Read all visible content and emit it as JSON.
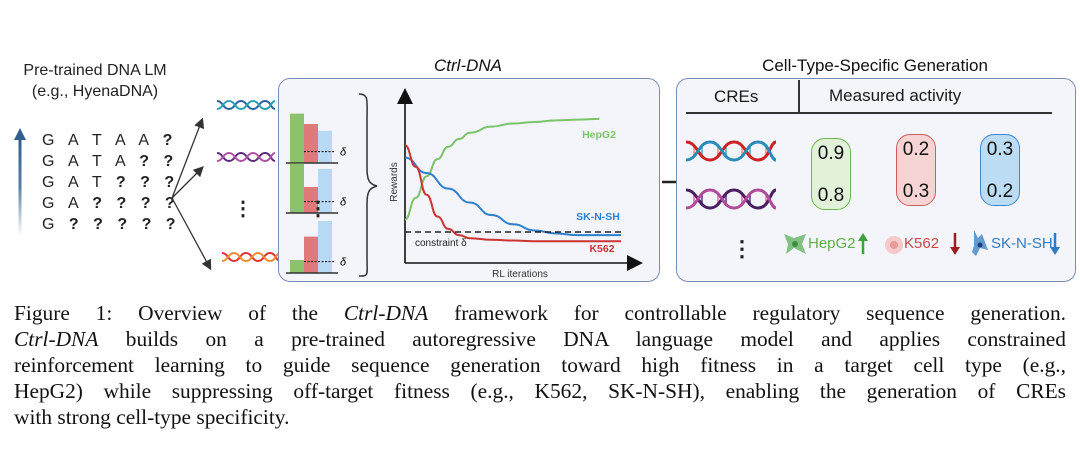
{
  "left_section": {
    "title_line1": "Pre-trained DNA LM",
    "title_line2": "(e.g., HyenaDNA)",
    "sequences": [
      {
        "known": "G A T A A",
        "unknown": "?"
      },
      {
        "known": "G A T A",
        "unknown": "? ?"
      },
      {
        "known": "G A T",
        "unknown": "? ? ?"
      },
      {
        "known": "G A",
        "unknown": "? ? ? ?"
      },
      {
        "known": "G",
        "unknown": "? ? ? ? ?"
      }
    ],
    "ellipsis": "⋮"
  },
  "ctrl_dna_panel": {
    "title": "Ctrl-DNA",
    "delta_symbol": "δ",
    "bar_groups_ellipsis": "⋮",
    "reward_bars": [
      {
        "HepG2": 0.95,
        "K562": 0.75,
        "SK-N-SH": 0.62,
        "threshold": 0.22
      },
      {
        "HepG2": 0.95,
        "K562": 0.5,
        "SK-N-SH": 0.85,
        "threshold": 0.22
      },
      {
        "HepG2": 0.25,
        "K562": 0.7,
        "SK-N-SH": 1.0,
        "threshold": 0.22
      }
    ],
    "colors": {
      "HepG2": "#8cc26e",
      "K562": "#e07a7a",
      "SK-N-SH": "#b8d9f2"
    }
  },
  "chart_data": {
    "type": "line",
    "title": "",
    "xlabel": "RL iterations",
    "ylabel": "Rewards",
    "grid": false,
    "xlim": [
      0,
      1
    ],
    "ylim": [
      0,
      1
    ],
    "annotation": "constraint δ",
    "constraint_value": 0.2,
    "series": [
      {
        "name": "HepG2",
        "color": "#7cc46a",
        "x": [
          0,
          0.05,
          0.1,
          0.15,
          0.2,
          0.25,
          0.3,
          0.4,
          0.5,
          0.6,
          0.7,
          0.8,
          0.9
        ],
        "y": [
          0.28,
          0.42,
          0.56,
          0.67,
          0.75,
          0.8,
          0.84,
          0.88,
          0.9,
          0.91,
          0.92,
          0.925,
          0.93
        ]
      },
      {
        "name": "SK-N-SH",
        "color": "#2f7fcf",
        "x": [
          0,
          0.1,
          0.2,
          0.3,
          0.4,
          0.5,
          0.6,
          0.7,
          0.8,
          0.9,
          1.0
        ],
        "y": [
          0.68,
          0.58,
          0.48,
          0.39,
          0.31,
          0.25,
          0.21,
          0.19,
          0.18,
          0.18,
          0.18
        ]
      },
      {
        "name": "K562",
        "color": "#cc3333",
        "x": [
          0,
          0.05,
          0.1,
          0.15,
          0.2,
          0.25,
          0.3,
          0.4,
          0.5,
          0.6,
          0.8,
          1.0
        ],
        "y": [
          0.76,
          0.62,
          0.44,
          0.3,
          0.22,
          0.18,
          0.16,
          0.15,
          0.145,
          0.14,
          0.14,
          0.14
        ]
      }
    ]
  },
  "generation_panel": {
    "title": "Cell-Type-Specific Generation",
    "col_cres": "CREs",
    "col_activity": "Measured activity",
    "ellipsis": "⋮",
    "activity": [
      {
        "cell": "HepG2",
        "values": [
          "0.9",
          "0.8"
        ],
        "direction": "up",
        "fill": "#e2f1da",
        "border": "#6cb84f",
        "text_color": "#5fae48"
      },
      {
        "cell": "K562",
        "values": [
          "0.2",
          "0.3"
        ],
        "direction": "down",
        "fill": "#f6d4d4",
        "border": "#cf5b5b",
        "text_color": "#c84848"
      },
      {
        "cell": "SK-N-SH",
        "values": [
          "0.3",
          "0.2"
        ],
        "direction": "down",
        "fill": "#bcdcf3",
        "border": "#3c87cf",
        "text_color": "#2f7bc4"
      }
    ]
  },
  "caption": {
    "lines": [
      [
        {
          "t": "Figure 1: Overview of the "
        },
        {
          "t": "Ctrl-DNA",
          "i": true
        },
        {
          "t": " framework for controllable regulatory sequence generation."
        }
      ],
      [
        {
          "t": "Ctrl-DNA",
          "i": true
        },
        {
          "t": " builds on a pre-trained autoregressive DNA language model and applies constrained"
        }
      ],
      [
        {
          "t": "reinforcement learning to guide sequence generation toward high fitness in a target cell type (e.g.,"
        }
      ],
      [
        {
          "t": "HepG2) while suppressing off-target fitness (e.g., K562, SK-N-SH), enabling the generation of CREs"
        }
      ],
      [
        {
          "t": "with strong cell-type specificity."
        }
      ]
    ]
  }
}
